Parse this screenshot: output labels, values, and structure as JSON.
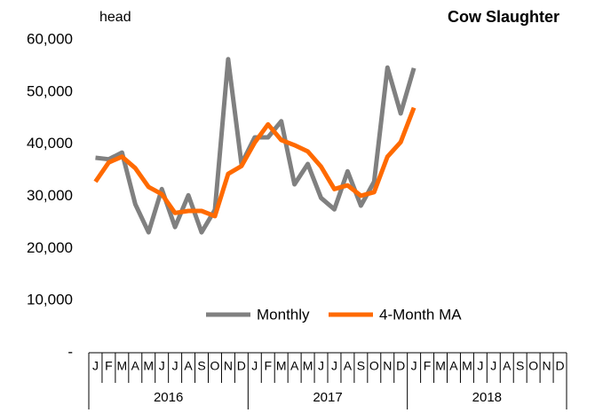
{
  "chart_data": {
    "type": "line",
    "title": "Cow Slaughter",
    "y_unit": "head",
    "categories": [
      "J",
      "F",
      "M",
      "A",
      "M",
      "J",
      "J",
      "A",
      "S",
      "O",
      "N",
      "D",
      "J",
      "F",
      "M",
      "A",
      "M",
      "J",
      "J",
      "A",
      "S",
      "O",
      "N",
      "D",
      "J",
      "F",
      "M",
      "A",
      "M",
      "J",
      "J",
      "A",
      "S",
      "O",
      "N",
      "D"
    ],
    "years": [
      "2016",
      "2017",
      "2018"
    ],
    "series": [
      {
        "name": "Monthly",
        "color": "#808080",
        "values": [
          37400,
          37100,
          38400,
          28500,
          23100,
          31400,
          24100,
          30200,
          23100,
          27400,
          56300,
          36200,
          41300,
          41300,
          44400,
          32300,
          36200,
          29700,
          27500,
          34800,
          28200,
          32800,
          54700,
          45900,
          54600,
          null,
          null,
          null,
          null,
          null,
          null,
          null,
          null,
          null,
          null,
          null
        ]
      },
      {
        "name": "4-Month MA",
        "color": "#ff6a00",
        "values": [
          32800,
          36500,
          37600,
          35400,
          31800,
          30400,
          26800,
          27200,
          27200,
          26200,
          34300,
          35800,
          40300,
          43800,
          40800,
          39800,
          38600,
          35700,
          31400,
          32100,
          30100,
          30800,
          37600,
          40400,
          47000,
          null,
          null,
          null,
          null,
          null,
          null,
          null,
          null,
          null,
          null,
          null
        ]
      }
    ],
    "ylim": [
      0,
      60000
    ],
    "yticks": [
      {
        "value": 0,
        "label": "-"
      },
      {
        "value": 10000,
        "label": "10,000"
      },
      {
        "value": 20000,
        "label": "20,000"
      },
      {
        "value": 30000,
        "label": "30,000"
      },
      {
        "value": 40000,
        "label": "40,000"
      },
      {
        "value": 50000,
        "label": "50,000"
      },
      {
        "value": 60000,
        "label": "60,000"
      }
    ],
    "legend": "bottom"
  }
}
